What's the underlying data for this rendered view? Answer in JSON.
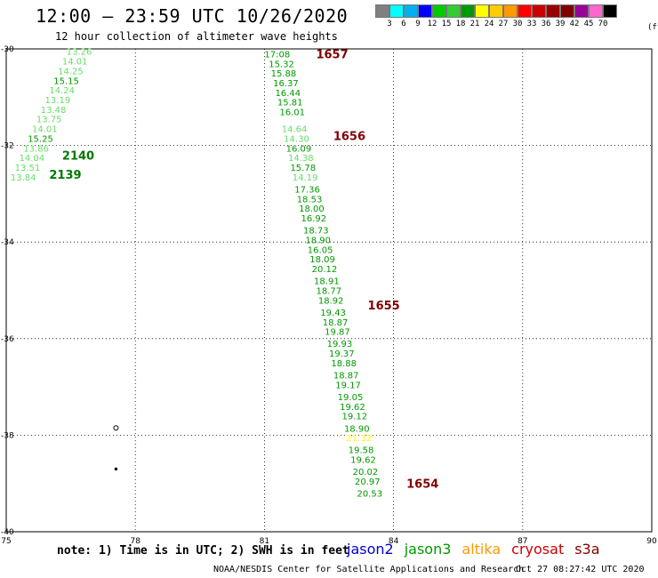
{
  "header": {
    "title": "12:00 – 23:59 UTC 10/26/2020",
    "subtitle": "12 hour collection of altimeter wave heights"
  },
  "legend": {
    "colors": [
      "#808080",
      "#00ffff",
      "#00b0f0",
      "#0000ff",
      "#00cc00",
      "#33cc33",
      "#009900",
      "#ffff00",
      "#ffcc00",
      "#ff9900",
      "#ff0000",
      "#cc0000",
      "#990000",
      "#800000",
      "#990099",
      "#ff66cc",
      "#000000"
    ],
    "labels": [
      "3",
      "6",
      "9",
      "12",
      "15",
      "18",
      "21",
      "24",
      "27",
      "30",
      "33",
      "36",
      "39",
      "42",
      "45",
      "70"
    ],
    "unit": "(ft)"
  },
  "axes": {
    "x_ticks": [
      "75",
      "78",
      "81",
      "84",
      "87",
      "90"
    ],
    "y_ticks": [
      "-30",
      "-32",
      "-34",
      "-36",
      "-38",
      "-40"
    ]
  },
  "map": {
    "lon_range": [
      75,
      90
    ],
    "lat_range": [
      -40,
      -30
    ],
    "passes": [
      {
        "label": "2140",
        "lon": 76.3,
        "lat": -32.2,
        "color": "#007700"
      },
      {
        "label": "2139",
        "lon": 76.0,
        "lat": -32.6,
        "color": "#007700"
      },
      {
        "label": "1657",
        "lon": 82.2,
        "lat": -30.1,
        "color": "#800000"
      },
      {
        "label": "1656",
        "lon": 82.6,
        "lat": -31.8,
        "color": "#800000"
      },
      {
        "label": "1655",
        "lon": 83.4,
        "lat": -35.3,
        "color": "#800000"
      },
      {
        "label": "1654",
        "lon": 84.3,
        "lat": -39.0,
        "color": "#800000"
      }
    ],
    "waves": [
      {
        "v": "13.26",
        "lon": 76.4,
        "lat": -30.05,
        "c": "#66dd66"
      },
      {
        "v": "14.01",
        "lon": 76.3,
        "lat": -30.25,
        "c": "#66dd66"
      },
      {
        "v": "14.25",
        "lon": 76.2,
        "lat": -30.45,
        "c": "#66dd66"
      },
      {
        "v": "15.15",
        "lon": 76.1,
        "lat": -30.65,
        "c": "#009900"
      },
      {
        "v": "14.24",
        "lon": 76.0,
        "lat": -30.85,
        "c": "#66dd66"
      },
      {
        "v": "13.19",
        "lon": 75.9,
        "lat": -31.05,
        "c": "#66dd66"
      },
      {
        "v": "13.48",
        "lon": 75.8,
        "lat": -31.25,
        "c": "#66dd66"
      },
      {
        "v": "13.75",
        "lon": 75.7,
        "lat": -31.45,
        "c": "#66dd66"
      },
      {
        "v": "14.01",
        "lon": 75.6,
        "lat": -31.65,
        "c": "#66dd66"
      },
      {
        "v": "15.25",
        "lon": 75.5,
        "lat": -31.85,
        "c": "#009900"
      },
      {
        "v": "13.86",
        "lon": 75.4,
        "lat": -32.05,
        "c": "#66dd66"
      },
      {
        "v": "14.04",
        "lon": 75.3,
        "lat": -32.25,
        "c": "#66dd66"
      },
      {
        "v": "13.51",
        "lon": 75.2,
        "lat": -32.45,
        "c": "#66dd66"
      },
      {
        "v": "13.84",
        "lon": 75.1,
        "lat": -32.65,
        "c": "#66dd66"
      },
      {
        "v": "17:08",
        "lon": 81.0,
        "lat": -30.1,
        "c": "#009900"
      },
      {
        "v": "15.32",
        "lon": 81.1,
        "lat": -30.3,
        "c": "#009900"
      },
      {
        "v": "15.88",
        "lon": 81.15,
        "lat": -30.5,
        "c": "#009900"
      },
      {
        "v": "16.37",
        "lon": 81.2,
        "lat": -30.7,
        "c": "#009900"
      },
      {
        "v": "16.44",
        "lon": 81.25,
        "lat": -30.9,
        "c": "#009900"
      },
      {
        "v": "15.81",
        "lon": 81.3,
        "lat": -31.1,
        "c": "#009900"
      },
      {
        "v": "16.01",
        "lon": 81.35,
        "lat": -31.3,
        "c": "#009900"
      },
      {
        "v": "14.64",
        "lon": 81.4,
        "lat": -31.65,
        "c": "#66dd66"
      },
      {
        "v": "14.30",
        "lon": 81.45,
        "lat": -31.85,
        "c": "#66dd66"
      },
      {
        "v": "16.09",
        "lon": 81.5,
        "lat": -32.05,
        "c": "#009900"
      },
      {
        "v": "14.38",
        "lon": 81.55,
        "lat": -32.25,
        "c": "#66dd66"
      },
      {
        "v": "15.78",
        "lon": 81.6,
        "lat": -32.45,
        "c": "#009900"
      },
      {
        "v": "14.19",
        "lon": 81.65,
        "lat": -32.65,
        "c": "#66dd66"
      },
      {
        "v": "17.36",
        "lon": 81.7,
        "lat": -32.9,
        "c": "#009900"
      },
      {
        "v": "18.53",
        "lon": 81.75,
        "lat": -33.1,
        "c": "#009900"
      },
      {
        "v": "18.00",
        "lon": 81.8,
        "lat": -33.3,
        "c": "#009900"
      },
      {
        "v": "16.92",
        "lon": 81.85,
        "lat": -33.5,
        "c": "#009900"
      },
      {
        "v": "18.73",
        "lon": 81.9,
        "lat": -33.75,
        "c": "#009900"
      },
      {
        "v": "18.90",
        "lon": 81.95,
        "lat": -33.95,
        "c": "#009900"
      },
      {
        "v": "16.05",
        "lon": 82.0,
        "lat": -34.15,
        "c": "#009900"
      },
      {
        "v": "18.09",
        "lon": 82.05,
        "lat": -34.35,
        "c": "#009900"
      },
      {
        "v": "20.12",
        "lon": 82.1,
        "lat": -34.55,
        "c": "#009900"
      },
      {
        "v": "18.91",
        "lon": 82.15,
        "lat": -34.8,
        "c": "#009900"
      },
      {
        "v": "18.77",
        "lon": 82.2,
        "lat": -35.0,
        "c": "#009900"
      },
      {
        "v": "18.92",
        "lon": 82.25,
        "lat": -35.2,
        "c": "#009900"
      },
      {
        "v": "19.43",
        "lon": 82.3,
        "lat": -35.45,
        "c": "#009900"
      },
      {
        "v": "18.87",
        "lon": 82.35,
        "lat": -35.65,
        "c": "#009900"
      },
      {
        "v": "19.87",
        "lon": 82.4,
        "lat": -35.85,
        "c": "#009900"
      },
      {
        "v": "19.93",
        "lon": 82.45,
        "lat": -36.1,
        "c": "#009900"
      },
      {
        "v": "19.37",
        "lon": 82.5,
        "lat": -36.3,
        "c": "#009900"
      },
      {
        "v": "18.88",
        "lon": 82.55,
        "lat": -36.5,
        "c": "#009900"
      },
      {
        "v": "18.87",
        "lon": 82.6,
        "lat": -36.75,
        "c": "#009900"
      },
      {
        "v": "19.17",
        "lon": 82.65,
        "lat": -36.95,
        "c": "#009900"
      },
      {
        "v": "19.05",
        "lon": 82.7,
        "lat": -37.2,
        "c": "#009900"
      },
      {
        "v": "19.62",
        "lon": 82.75,
        "lat": -37.4,
        "c": "#009900"
      },
      {
        "v": "19.12",
        "lon": 82.8,
        "lat": -37.6,
        "c": "#009900"
      },
      {
        "v": "18.90",
        "lon": 82.85,
        "lat": -37.85,
        "c": "#009900"
      },
      {
        "v": "21.32",
        "lon": 82.9,
        "lat": -38.05,
        "c": "#ffff00"
      },
      {
        "v": "19.58",
        "lon": 82.95,
        "lat": -38.3,
        "c": "#009900"
      },
      {
        "v": "19.62",
        "lon": 83.0,
        "lat": -38.5,
        "c": "#009900"
      },
      {
        "v": "20.02",
        "lon": 83.05,
        "lat": -38.75,
        "c": "#009900"
      },
      {
        "v": "20.97",
        "lon": 83.1,
        "lat": -38.95,
        "c": "#009900"
      },
      {
        "v": "20.53",
        "lon": 83.15,
        "lat": -39.2,
        "c": "#009900"
      }
    ],
    "islands": [
      {
        "lon": 77.55,
        "lat": -37.85
      },
      {
        "lon": 77.55,
        "lat": -38.7
      }
    ]
  },
  "note": "note: 1) Time is in UTC; 2) SWH is in feet",
  "satellites": [
    {
      "name": "jason2",
      "color": "#0000cc"
    },
    {
      "name": "jason3",
      "color": "#009900"
    },
    {
      "name": "altika",
      "color": "#ff9900"
    },
    {
      "name": "cryosat",
      "color": "#cc0000"
    },
    {
      "name": "s3a",
      "color": "#800000"
    }
  ],
  "footer": {
    "left": "NOAA/NESDIS Center for Satellite Applications and Research",
    "right": "Oct 27 08:27:42 UTC 2020"
  }
}
